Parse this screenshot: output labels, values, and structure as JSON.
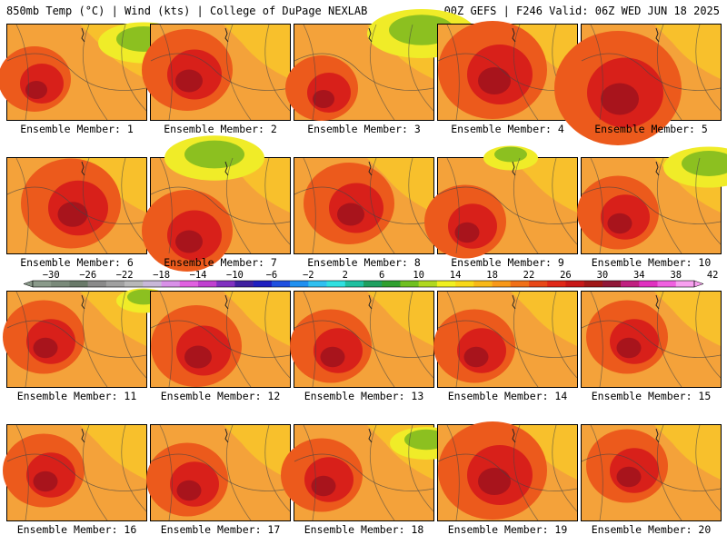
{
  "header": {
    "left": "850mb Temp (°C) | Wind (kts) | College of DuPage NEXLAB",
    "right": "00Z GEFS | F246 Valid: 06Z WED JUN 18 2025"
  },
  "member_label_prefix": "Ensemble Member: ",
  "members": [
    {
      "id": 1,
      "label": "Ensemble Member: 1"
    },
    {
      "id": 2,
      "label": "Ensemble Member: 2"
    },
    {
      "id": 3,
      "label": "Ensemble Member: 3"
    },
    {
      "id": 4,
      "label": "Ensemble Member: 4"
    },
    {
      "id": 5,
      "label": "Ensemble Member: 5"
    },
    {
      "id": 6,
      "label": "Ensemble Member: 6"
    },
    {
      "id": 7,
      "label": "Ensemble Member: 7"
    },
    {
      "id": 8,
      "label": "Ensemble Member: 8"
    },
    {
      "id": 9,
      "label": "Ensemble Member: 9"
    },
    {
      "id": 10,
      "label": "Ensemble Member: 10"
    },
    {
      "id": 11,
      "label": "Ensemble Member: 11"
    },
    {
      "id": 12,
      "label": "Ensemble Member: 12"
    },
    {
      "id": 13,
      "label": "Ensemble Member: 13"
    },
    {
      "id": 14,
      "label": "Ensemble Member: 14"
    },
    {
      "id": 15,
      "label": "Ensemble Member: 15"
    },
    {
      "id": 16,
      "label": "Ensemble Member: 16"
    },
    {
      "id": 17,
      "label": "Ensemble Member: 17"
    },
    {
      "id": 18,
      "label": "Ensemble Member: 18"
    },
    {
      "id": 19,
      "label": "Ensemble Member: 19"
    },
    {
      "id": 20,
      "label": "Ensemble Member: 20"
    }
  ],
  "colorbar": {
    "tick_labels": [
      "−30",
      "−26",
      "−22",
      "−18",
      "−14",
      "−10",
      "−6",
      "−2",
      "2",
      "6",
      "10",
      "14",
      "18",
      "22",
      "26",
      "30",
      "34",
      "38",
      "42"
    ],
    "colors": [
      "#8a9a8a",
      "#7a8a7a",
      "#6a7a6a",
      "#8a8a8a",
      "#a0a0a0",
      "#b8b8b8",
      "#c8b8d8",
      "#d890e8",
      "#e060e0",
      "#c040d0",
      "#8030c0",
      "#4020a0",
      "#2020c0",
      "#2050e0",
      "#2090f0",
      "#30c0f0",
      "#30e0e0",
      "#20c0a0",
      "#20a060",
      "#30a030",
      "#70c020",
      "#b0d820",
      "#f0f020",
      "#f8d818",
      "#f8b818",
      "#f89818",
      "#f07018",
      "#e84818",
      "#e02818",
      "#c81818",
      "#a01818",
      "#901838",
      "#c02080",
      "#e030c0",
      "#f060e0",
      "#f8a0f0"
    ]
  }
}
